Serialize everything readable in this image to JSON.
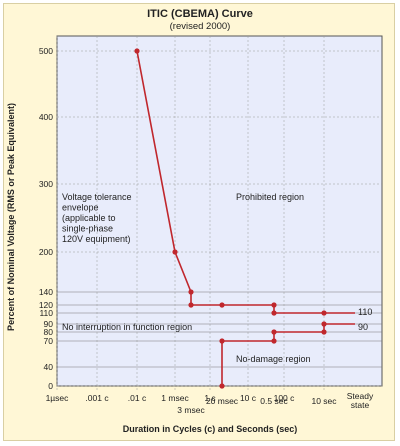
{
  "chart_data": {
    "type": "line",
    "title": "ITIC (CBEMA) Curve",
    "subtitle": "(revised 2000)",
    "xlabel": "Duration in Cycles (c) and Seconds (sec)",
    "ylabel": "Percent of Nominal Voltage (RMS or Peak Equivalent)",
    "y_ticks": [
      0,
      40,
      70,
      80,
      90,
      110,
      120,
      140,
      200,
      300,
      400,
      500
    ],
    "y_tick_labels": [
      "0",
      "40",
      "70",
      "80",
      "90",
      "110",
      "120",
      "140",
      "200",
      "300",
      "400",
      "500"
    ],
    "x_ticks_top": [
      {
        "x": "1µsec",
        "label": "1µsec"
      },
      {
        "x": ".001 c",
        "label": ".001 c"
      },
      {
        "x": ".01 c",
        "label": ".01 c"
      },
      {
        "x": "1 msec",
        "label": "1 msec"
      },
      {
        "x": "3 msec",
        "label": "3 msec"
      },
      {
        "x": "1 c",
        "label": "1 c"
      },
      {
        "x": "20 msec",
        "label": "20 msec"
      },
      {
        "x": "10 c",
        "label": "10 c"
      },
      {
        "x": "100 c",
        "label": "100 c"
      },
      {
        "x": "0.5 sec",
        "label": "0.5 sec"
      },
      {
        "x": "10 sec",
        "label": "10 sec"
      },
      {
        "x": "Steady state",
        "label": "Steady state"
      }
    ],
    "upper_curve": {
      "points": [
        {
          "duration": ".01 c",
          "voltage": 500
        },
        {
          "duration": "1 msec",
          "voltage": 200
        },
        {
          "duration": "3 msec",
          "voltage": 140
        },
        {
          "duration": "3 msec",
          "voltage": 120
        },
        {
          "duration": "20 msec",
          "voltage": 120
        },
        {
          "duration": "0.5 sec",
          "voltage": 120
        },
        {
          "duration": "0.5 sec",
          "voltage": 110
        },
        {
          "duration": "10 sec",
          "voltage": 110
        },
        {
          "duration": "Steady state",
          "voltage": 110
        }
      ],
      "end_label": "110"
    },
    "lower_curve": {
      "points": [
        {
          "duration": "20 msec",
          "voltage": 0
        },
        {
          "duration": "20 msec",
          "voltage": 70
        },
        {
          "duration": "0.5 sec",
          "voltage": 70
        },
        {
          "duration": "0.5 sec",
          "voltage": 80
        },
        {
          "duration": "10 sec",
          "voltage": 80
        },
        {
          "duration": "10 sec",
          "voltage": 90
        },
        {
          "duration": "Steady state",
          "voltage": 90
        }
      ],
      "end_label": "90"
    },
    "regions": {
      "voltage_tolerance": [
        "Voltage tolerance",
        "envelope",
        "(applicable to",
        "single-phase",
        "120V equipment)"
      ],
      "prohibited": "Prohibited region",
      "no_interruption": "No interruption in function region",
      "no_damage": "No-damage region"
    },
    "colors": {
      "curve": "#c0272d",
      "plot_background": "#e8ecfb",
      "frame_background": "#fff7d6",
      "grid": "#9a9a9a"
    }
  }
}
